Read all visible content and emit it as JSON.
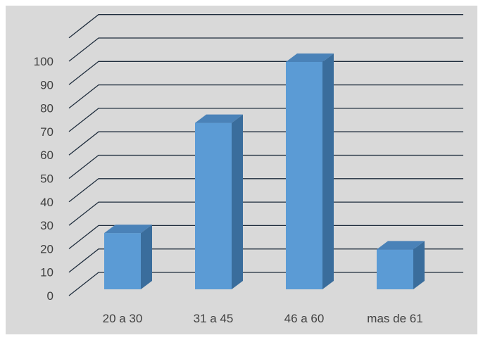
{
  "chart_data": {
    "type": "bar",
    "style": "3d-column",
    "categories": [
      "20 a 30",
      "31 a 45",
      "46 a 60",
      "mas de 61"
    ],
    "values": [
      24,
      71,
      97,
      17
    ],
    "ylim": [
      0,
      110
    ],
    "yticks": [
      "0",
      "10",
      "20",
      "30",
      "40",
      "50",
      "60",
      "70",
      "80",
      "90",
      "100"
    ],
    "title": "",
    "xlabel": "",
    "ylabel": "",
    "grid": true,
    "legend": "none",
    "colors": {
      "background": "#d9d9d9",
      "bar_front": "#5b9bd5",
      "bar_side": "#3a6d9c",
      "bar_top": "#4a82b8",
      "gridline": "#1f2d3d",
      "text": "#404040"
    }
  }
}
